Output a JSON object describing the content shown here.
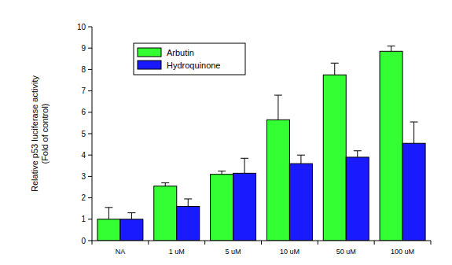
{
  "chart_data": {
    "type": "bar",
    "y_label": [
      "Relative p53 luciferase activity",
      "(Fold of control)"
    ],
    "categories": [
      "NA",
      "1 uM",
      "5 uM",
      "10 uM",
      "50 uM",
      "100 uM"
    ],
    "series": [
      {
        "name": "Arbutin",
        "color": "#33ff33",
        "values": [
          1.0,
          2.55,
          3.1,
          5.65,
          7.75,
          8.85
        ],
        "errors": [
          0.55,
          0.15,
          0.15,
          1.15,
          0.55,
          0.25
        ]
      },
      {
        "name": "Hydroquinone",
        "color": "#1a1aff",
        "values": [
          1.0,
          1.6,
          3.15,
          3.6,
          3.9,
          4.55
        ],
        "errors": [
          0.3,
          0.35,
          0.7,
          0.4,
          0.3,
          1.0
        ]
      }
    ],
    "ylim": [
      0,
      10
    ],
    "yticks": [
      0,
      1,
      2,
      3,
      4,
      5,
      6,
      7,
      8,
      9,
      10
    ],
    "legend": "upper left",
    "grid": false
  }
}
